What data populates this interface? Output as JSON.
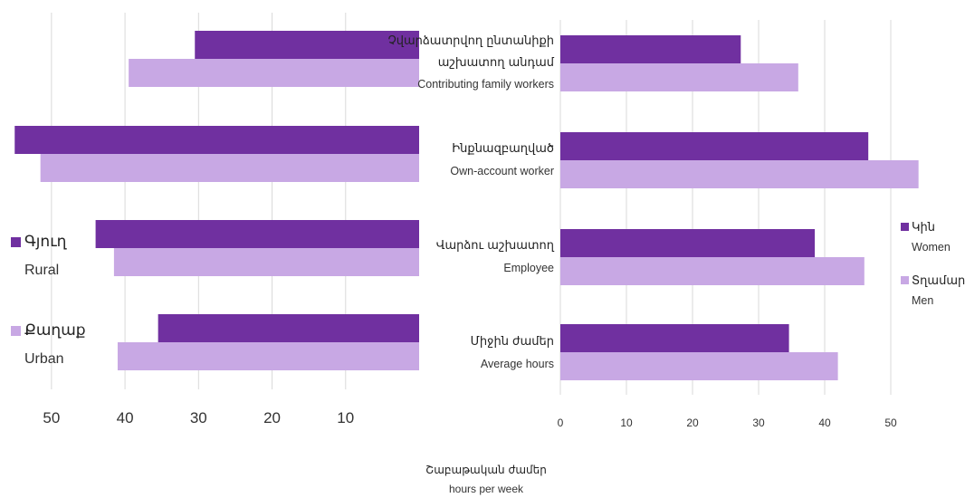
{
  "colors": {
    "dark": "#7030a0",
    "light": "#c8a8e4"
  },
  "x_title": {
    "hy": "Շաբաթական ժամեր",
    "en": "hours per week"
  },
  "chart_data": [
    {
      "type": "bar",
      "orientation": "horizontal",
      "x_reversed": true,
      "xlim": [
        0,
        57
      ],
      "xticks": [
        50,
        40,
        30,
        20,
        10
      ],
      "grid": true,
      "legend": [
        {
          "hy": "Գյուղ",
          "en": "Rural",
          "color": "dark"
        },
        {
          "hy": "Քաղաք",
          "en": "Urban",
          "color": "light"
        }
      ],
      "series": [
        {
          "values": [
            30.5,
            55.0,
            44.0,
            35.5
          ]
        },
        {
          "values": [
            39.5,
            51.5,
            41.5,
            41.0
          ]
        }
      ]
    },
    {
      "type": "bar",
      "orientation": "horizontal",
      "xlim": [
        0,
        56
      ],
      "xticks": [
        0,
        10,
        20,
        30,
        40,
        50
      ],
      "grid": true,
      "categories": [
        {
          "hy1": "Չվարձատրվող ընտանիքի",
          "hy2": "աշխատող անդամ",
          "en": "Contributing family workers"
        },
        {
          "hy1": "Ինքնազբաղված",
          "hy2": "",
          "en": "Own-account worker"
        },
        {
          "hy1": "Վարձու աշխատող",
          "hy2": "",
          "en": "Employee"
        },
        {
          "hy1": "Միջին ժամեր",
          "hy2": "",
          "en": "Average hours"
        }
      ],
      "legend": [
        {
          "hy": "Կին",
          "en": "Women",
          "color": "dark"
        },
        {
          "hy": "Տղամարդ",
          "en": "Men",
          "color": "light"
        }
      ],
      "series": [
        {
          "values": [
            27.3,
            46.6,
            38.5,
            34.6
          ]
        },
        {
          "values": [
            36.0,
            54.2,
            46.0,
            42.0
          ]
        }
      ]
    }
  ]
}
